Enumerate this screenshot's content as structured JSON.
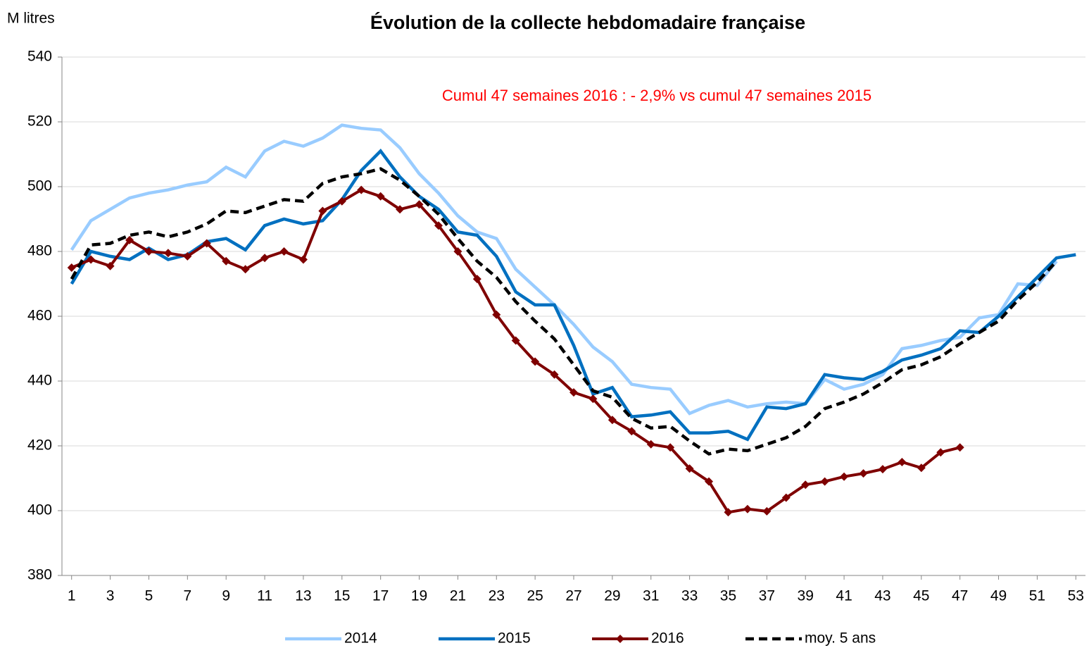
{
  "chart_data": {
    "type": "line",
    "title": "Évolution de la collecte hebdomadaire française",
    "y_label": "M litres",
    "annotation": "Cumul 47 semaines 2016 : - 2,9% vs cumul 47 semaines 2015",
    "annotation_color": "#ff0000",
    "x": [
      1,
      2,
      3,
      4,
      5,
      6,
      7,
      8,
      9,
      10,
      11,
      12,
      13,
      14,
      15,
      16,
      17,
      18,
      19,
      20,
      21,
      22,
      23,
      24,
      25,
      26,
      27,
      28,
      29,
      30,
      31,
      32,
      33,
      34,
      35,
      36,
      37,
      38,
      39,
      40,
      41,
      42,
      43,
      44,
      45,
      46,
      47,
      48,
      49,
      50,
      51,
      52,
      53
    ],
    "xlim": [
      0.5,
      53.5
    ],
    "xticks": [
      1,
      3,
      5,
      7,
      9,
      11,
      13,
      15,
      17,
      19,
      21,
      23,
      25,
      27,
      29,
      31,
      33,
      35,
      37,
      39,
      41,
      43,
      45,
      47,
      49,
      51,
      53
    ],
    "ylim": [
      380,
      540
    ],
    "yticks": [
      380,
      400,
      420,
      440,
      460,
      480,
      500,
      520,
      540
    ],
    "grid": true,
    "legend": "bottom",
    "series": [
      {
        "name": "2014",
        "color": "#99ccff",
        "width": 4.5,
        "dash": false,
        "marker": "none",
        "values": [
          480.5,
          489.5,
          493,
          496.5,
          498,
          499,
          500.5,
          501.5,
          506,
          503,
          511,
          514,
          512.5,
          515,
          519,
          518,
          517.5,
          512,
          504,
          498,
          491,
          486,
          484,
          474.5,
          469,
          463.5,
          457.5,
          450.5,
          446,
          439,
          438,
          437.5,
          430,
          432.5,
          434,
          432,
          433,
          433.5,
          433,
          440.5,
          437.5,
          439,
          442,
          450,
          451,
          452.5,
          453.5,
          459.5,
          460.5,
          470,
          469.5,
          477,
          null
        ]
      },
      {
        "name": "2015",
        "color": "#0070c0",
        "width": 4.5,
        "dash": false,
        "marker": "none",
        "values": [
          470,
          480,
          478.5,
          477.5,
          481,
          477.5,
          479,
          483,
          484,
          480.5,
          488,
          490,
          488.5,
          489.5,
          496,
          505,
          511,
          503,
          497,
          493,
          486,
          485,
          478.5,
          467.5,
          463.5,
          463.5,
          451,
          436,
          438,
          429,
          429.5,
          430.5,
          424,
          424,
          424.5,
          422,
          432,
          431.5,
          433,
          442,
          441,
          440.5,
          443,
          446.5,
          448,
          450,
          455.5,
          455,
          460,
          466,
          472,
          478,
          479
        ]
      },
      {
        "name": "2016",
        "color": "#7f0000",
        "width": 4,
        "dash": false,
        "marker": "diamond",
        "values": [
          475,
          477.5,
          475.5,
          483.5,
          480,
          479.5,
          478.5,
          482.5,
          477,
          474.5,
          478,
          480,
          477.5,
          492.5,
          495.5,
          499,
          497,
          493,
          494.5,
          488,
          480,
          471.5,
          460.5,
          452.5,
          446,
          442,
          436.5,
          434.5,
          428,
          424.5,
          420.5,
          419.5,
          413,
          409,
          399.5,
          400.5,
          399.8,
          404,
          408,
          409,
          410.5,
          411.5,
          412.8,
          415,
          413.2,
          418,
          419.5,
          null,
          null,
          null,
          null,
          null,
          null
        ]
      },
      {
        "name": "moy. 5 ans",
        "color": "#000000",
        "width": 4.5,
        "dash": true,
        "marker": "none",
        "values": [
          471.5,
          482,
          482.5,
          485,
          486,
          484.5,
          486,
          488.5,
          492.5,
          492,
          494,
          496,
          495.5,
          501,
          503,
          504,
          505.5,
          502,
          497,
          491.5,
          484,
          477,
          472,
          464.5,
          458.5,
          453,
          445,
          437,
          435,
          428.5,
          425.5,
          426,
          421.5,
          417.5,
          419,
          418.5,
          420.5,
          422.5,
          426,
          431.5,
          433.5,
          436,
          439.5,
          443.5,
          445,
          447.5,
          451.5,
          455,
          458.5,
          465,
          470.5,
          477,
          null
        ]
      }
    ]
  }
}
